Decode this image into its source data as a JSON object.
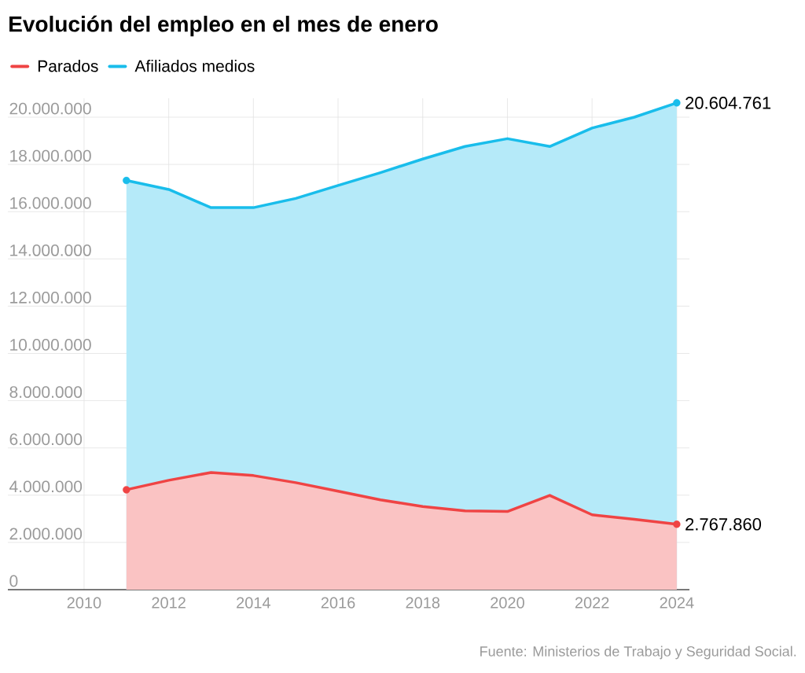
{
  "chart_data": {
    "type": "area",
    "title": "Evolución del empleo en el mes de enero",
    "x": [
      2011,
      2012,
      2013,
      2014,
      2015,
      2016,
      2017,
      2018,
      2019,
      2020,
      2021,
      2022,
      2023,
      2024
    ],
    "series": [
      {
        "name": "Parados",
        "color": "#ef4444",
        "values": [
          4230000,
          4630000,
          4960000,
          4830000,
          4530000,
          4170000,
          3800000,
          3520000,
          3340000,
          3310000,
          3990000,
          3170000,
          2980000,
          2767860
        ],
        "value_labels": [
          null,
          null,
          null,
          null,
          null,
          null,
          null,
          null,
          null,
          null,
          null,
          null,
          null,
          "2.767.860"
        ]
      },
      {
        "name": "Afiliados medios",
        "color": "#19bdeb",
        "values": [
          17320000,
          16940000,
          16170000,
          16170000,
          16560000,
          17110000,
          17650000,
          18230000,
          18760000,
          19090000,
          18760000,
          19540000,
          20000000,
          20604761
        ],
        "value_labels": [
          null,
          null,
          null,
          null,
          null,
          null,
          null,
          null,
          null,
          null,
          null,
          null,
          null,
          "20.604.761"
        ]
      }
    ],
    "xlim": [
      2008.2,
      2024.3
    ],
    "xticks": [
      2010,
      2012,
      2014,
      2016,
      2018,
      2020,
      2022,
      2024
    ],
    "ylim": [
      0,
      20800000
    ],
    "yticks": [
      {
        "value": 0,
        "label": "0"
      },
      {
        "value": 2000000,
        "label": "2.000.000"
      },
      {
        "value": 4000000,
        "label": "4.000.000"
      },
      {
        "value": 6000000,
        "label": "6.000.000"
      },
      {
        "value": 8000000,
        "label": "8.000.000"
      },
      {
        "value": 10000000,
        "label": "10.000.000"
      },
      {
        "value": 12000000,
        "label": "12.000.000"
      },
      {
        "value": 14000000,
        "label": "14.000.000"
      },
      {
        "value": 16000000,
        "label": "16.000.000"
      },
      {
        "value": 18000000,
        "label": "18.000.000"
      },
      {
        "value": 20000000,
        "label": "20.000.000"
      }
    ],
    "grid": true,
    "legend": "top left",
    "annotations": [
      "Fuente: Ministerios de Trabajo y Seguridad Social."
    ]
  }
}
